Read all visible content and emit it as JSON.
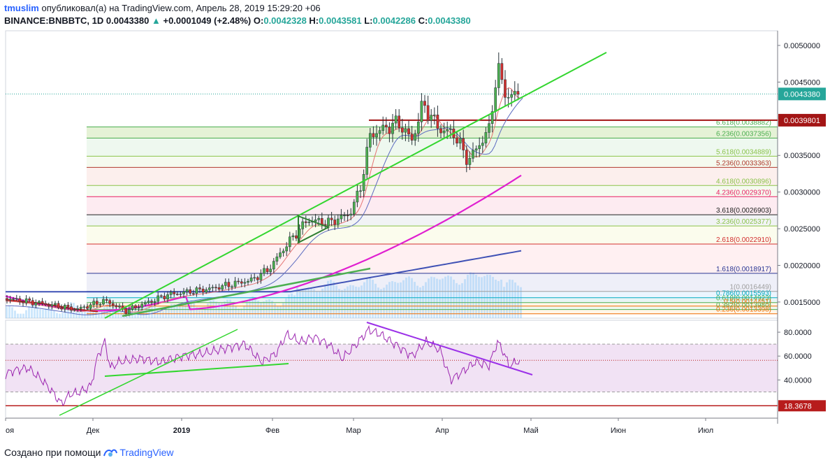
{
  "header": {
    "user": "tmuslim",
    "published_text": "опубликовал(а) на TradingView.com, Апрель 28, 2019 15:29:20 +06",
    "symbol": "BINANCE:BNBBTC, 1D",
    "last": "0.0043380",
    "change_arrow": "▲",
    "change": "+0.0001049 (+2.48%)",
    "o_label": "O:",
    "o": "0.0042328",
    "h_label": "H:",
    "h": "0.0043581",
    "l_label": "L:",
    "l": "0.0042286",
    "c_label": "C:",
    "c": "0.0043380"
  },
  "footer": {
    "created_with": "Создано при помощи",
    "brand": "TradingView"
  },
  "colors": {
    "up": "#26a69a",
    "down": "#ef5350",
    "candle_up": "#4caf50",
    "candle_down": "#d32f2f",
    "trend_green": "#33d62f",
    "ma_magenta": "#e01fd0",
    "ma_navy": "#3f51b5",
    "rsi_line": "#9c27b0",
    "rsi_trend": "#9b30e8",
    "resistance": "#a31515"
  },
  "chart_data": {
    "type": "candlestick",
    "symbol": "BINANCE:BNBBTC",
    "interval": "1D",
    "price_axis": {
      "ticks": [
        "0.0050000",
        "0.0045000",
        "0.0035000",
        "0.0030000",
        "0.0025000",
        "0.0020000",
        "0.0015000"
      ],
      "ylim": [
        0.00128,
        0.0052
      ],
      "last_price_label": "0.0043380",
      "last_price": 0.004338,
      "resistance_label": "0.0039801",
      "resistance": 0.0039801
    },
    "time_axis": {
      "labels": [
        "оя",
        "Дек",
        "2019",
        "Фев",
        "Мар",
        "Апр",
        "Май",
        "Июн",
        "Июл"
      ]
    },
    "fib_levels": [
      {
        "label": "6.618(0.0038882)",
        "price": 0.0038882,
        "color": "#4caf50"
      },
      {
        "label": "6.236(0.0037356)",
        "price": 0.0037356,
        "color": "#4caf50"
      },
      {
        "label": "5.618(0.0034889)",
        "price": 0.0034889,
        "color": "#8bc34a"
      },
      {
        "label": "5.236(0.0033363)",
        "price": 0.0033363,
        "color": "#b03a2e"
      },
      {
        "label": "4.618(0.0030896)",
        "price": 0.0030896,
        "color": "#8bc34a"
      },
      {
        "label": "4.236(0.0029370)",
        "price": 0.002937,
        "color": "#e91e63"
      },
      {
        "label": "3.618(0.0026903)",
        "price": 0.0026903,
        "color": "#212121"
      },
      {
        "label": "3.236(0.0025377)",
        "price": 0.0025377,
        "color": "#8bc34a"
      },
      {
        "label": "2.618(0.0022910)",
        "price": 0.002291,
        "color": "#d32f2f"
      },
      {
        "label": "1.618(0.0018917)",
        "price": 0.0018917,
        "color": "#283593"
      },
      {
        "label": "1(0.0016449)",
        "price": 0.0016449,
        "color": "#9e9e9e"
      },
      {
        "label": "0.786(0.0015593)",
        "price": 0.0015593,
        "color": "#00acc1"
      },
      {
        "label": "0.618(0.0014923)",
        "price": 0.0014923,
        "color": "#4caf50"
      },
      {
        "label": "0.5(0.0014451)",
        "price": 0.0014451,
        "color": "#ef6c00"
      },
      {
        "label": "0.382(0.0013980)",
        "price": 0.001398,
        "color": "#4caf50"
      },
      {
        "label": "0.236(0.0013398)",
        "price": 0.0013398,
        "color": "#ef6c00"
      }
    ],
    "rsi": {
      "ticks": [
        "80.0000",
        "60.0000",
        "40.0000"
      ],
      "ylim": [
        8,
        90
      ],
      "bands": [
        70,
        30
      ],
      "midline": 56.5,
      "low_label": "18.3678",
      "low": 18.3678
    }
  }
}
